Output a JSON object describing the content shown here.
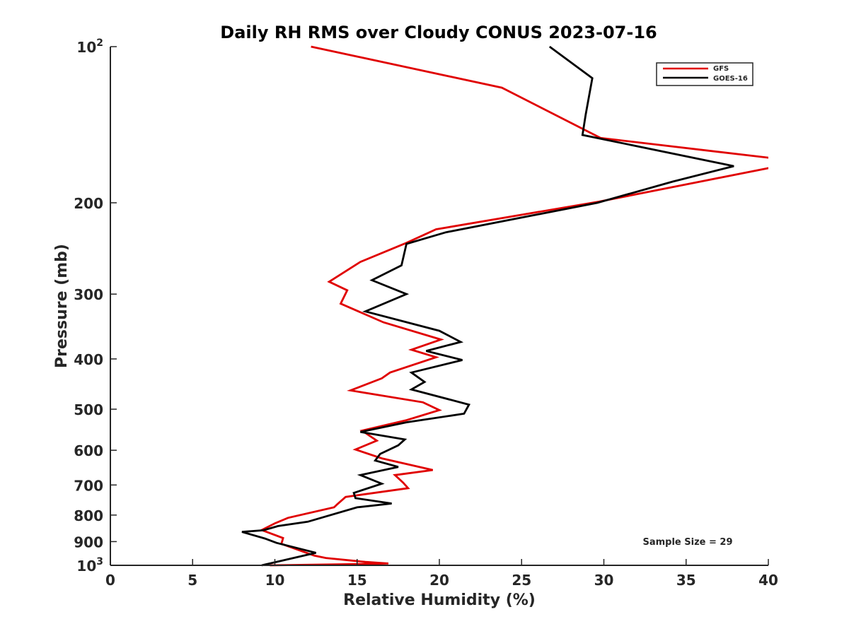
{
  "chart_data": {
    "type": "line",
    "title": "Daily RH RMS over Cloudy CONUS 2023-07-16",
    "xlabel": "Relative Humidity (%)",
    "ylabel": "Pressure (mb)",
    "xlim": [
      0,
      40
    ],
    "ylim": [
      100,
      1000
    ],
    "y_scale": "log",
    "y_reversed": true,
    "x_ticks": [
      0,
      5,
      10,
      15,
      20,
      25,
      30,
      35,
      40
    ],
    "x_tick_labels": [
      "0",
      "5",
      "10",
      "15",
      "20",
      "25",
      "30",
      "35",
      "40"
    ],
    "y_ticks": [
      100,
      200,
      300,
      400,
      500,
      600,
      700,
      800,
      900,
      1000
    ],
    "y_tick_labels": [
      {
        "base": "10",
        "sup": "2"
      },
      {
        "base": "200",
        "sup": ""
      },
      {
        "base": "300",
        "sup": ""
      },
      {
        "base": "400",
        "sup": ""
      },
      {
        "base": "500",
        "sup": ""
      },
      {
        "base": "600",
        "sup": ""
      },
      {
        "base": "700",
        "sup": ""
      },
      {
        "base": "800",
        "sup": ""
      },
      {
        "base": "900",
        "sup": ""
      },
      {
        "base": "10",
        "sup": "3"
      }
    ],
    "grid": false,
    "legend_position": "top-right",
    "annotation": "Sample Size = 29",
    "series": [
      {
        "name": "GFS",
        "color": "#e00000",
        "points": [
          [
            12.2,
            100
          ],
          [
            23.8,
            120
          ],
          [
            29.8,
            150
          ],
          [
            40.2,
            164
          ],
          [
            40.2,
            171
          ],
          [
            29.7,
            199
          ],
          [
            19.8,
            225
          ],
          [
            18.0,
            239
          ],
          [
            15.2,
            260
          ],
          [
            13.3,
            284
          ],
          [
            14.4,
            295
          ],
          [
            14.0,
            313
          ],
          [
            16.6,
            340
          ],
          [
            20.1,
            367
          ],
          [
            18.3,
            384
          ],
          [
            19.8,
            397
          ],
          [
            17.0,
            425
          ],
          [
            16.5,
            436
          ],
          [
            14.6,
            460
          ],
          [
            19.0,
            485
          ],
          [
            20.0,
            502
          ],
          [
            18.0,
            525
          ],
          [
            15.3,
            550
          ],
          [
            16.2,
            575
          ],
          [
            14.9,
            598
          ],
          [
            16.5,
            622
          ],
          [
            19.6,
            655
          ],
          [
            17.3,
            670
          ],
          [
            17.8,
            693
          ],
          [
            18.1,
            710
          ],
          [
            14.3,
            738
          ],
          [
            13.8,
            762
          ],
          [
            13.6,
            773
          ],
          [
            10.8,
            810
          ],
          [
            10.0,
            830
          ],
          [
            9.2,
            855
          ],
          [
            10.5,
            886
          ],
          [
            10.4,
            909
          ],
          [
            12.4,
            958
          ],
          [
            13.1,
            968
          ],
          [
            15.5,
            985
          ],
          [
            16.9,
            992
          ],
          [
            14.5,
            995
          ],
          [
            9.7,
            1000
          ]
        ]
      },
      {
        "name": "GOES-16",
        "color": "#000000",
        "points": [
          [
            26.7,
            100
          ],
          [
            29.3,
            115
          ],
          [
            28.9,
            135
          ],
          [
            28.7,
            148
          ],
          [
            37.9,
            170
          ],
          [
            34.2,
            182
          ],
          [
            29.6,
            200
          ],
          [
            20.4,
            228
          ],
          [
            18.0,
            240
          ],
          [
            17.7,
            264
          ],
          [
            15.9,
            282
          ],
          [
            18.0,
            300
          ],
          [
            15.5,
            324
          ],
          [
            20.0,
            353
          ],
          [
            21.3,
            371
          ],
          [
            19.2,
            386
          ],
          [
            21.4,
            402
          ],
          [
            18.3,
            425
          ],
          [
            19.1,
            443
          ],
          [
            18.3,
            458
          ],
          [
            21.8,
            490
          ],
          [
            21.5,
            510
          ],
          [
            18.0,
            530
          ],
          [
            15.2,
            553
          ],
          [
            17.9,
            572
          ],
          [
            17.5,
            587
          ],
          [
            16.4,
            610
          ],
          [
            16.1,
            628
          ],
          [
            17.5,
            646
          ],
          [
            15.2,
            670
          ],
          [
            16.5,
            696
          ],
          [
            14.8,
            725
          ],
          [
            14.9,
            742
          ],
          [
            17.1,
            760
          ],
          [
            15.0,
            773
          ],
          [
            12.0,
            824
          ],
          [
            10.2,
            840
          ],
          [
            9.3,
            856
          ],
          [
            8.0,
            862
          ],
          [
            9.4,
            888
          ],
          [
            10.1,
            905
          ],
          [
            12.5,
            946
          ],
          [
            9.2,
            1000
          ]
        ]
      }
    ]
  }
}
